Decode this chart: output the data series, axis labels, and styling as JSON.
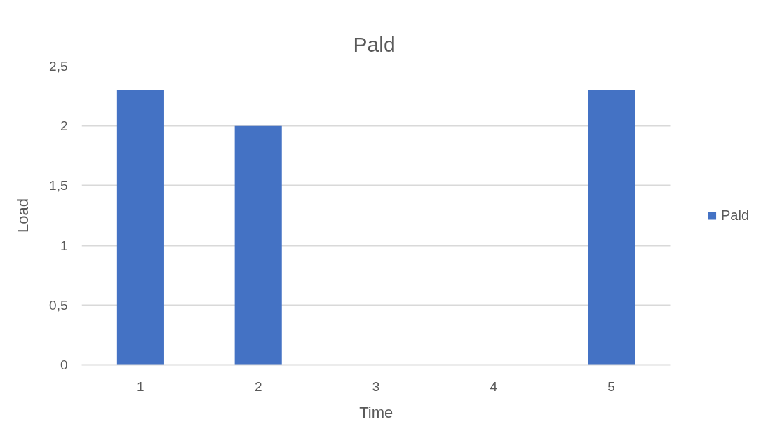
{
  "chart_data": {
    "type": "bar",
    "title": "Pald",
    "xlabel": "Time",
    "ylabel": "Load",
    "categories": [
      "1",
      "2",
      "3",
      "4",
      "5"
    ],
    "series": [
      {
        "name": "Pald",
        "color": "#4472c4",
        "values": [
          2.3,
          2.0,
          null,
          null,
          2.3
        ]
      }
    ],
    "ylim": [
      0,
      2.5
    ],
    "yticks": [
      0,
      {
        "value": 0.5,
        "label": "0,5"
      },
      1,
      {
        "value": 1.5,
        "label": "1,5"
      },
      2,
      {
        "value": 2.5,
        "label": "2,5"
      }
    ],
    "grid": "y",
    "legend": "right"
  }
}
